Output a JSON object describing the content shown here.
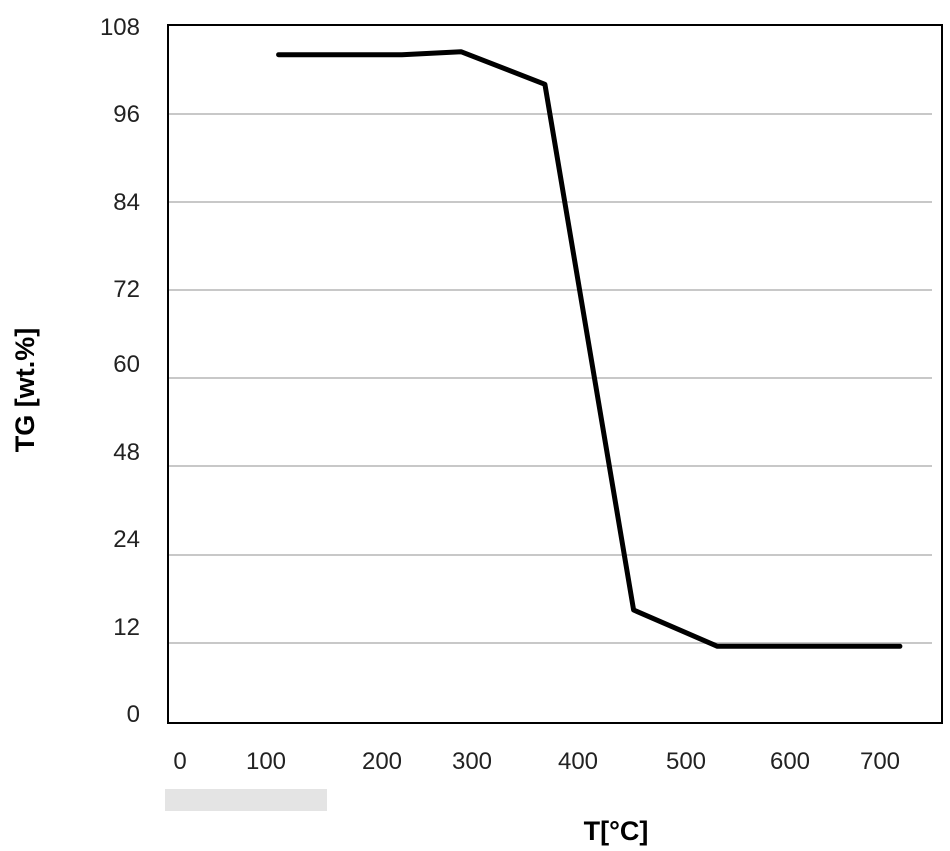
{
  "chart_data": {
    "type": "line",
    "xlabel": "T[°C]",
    "ylabel": "TG [wt.%]",
    "x_tick_labels": [
      "0",
      "100",
      "200",
      "300",
      "400",
      "500",
      "600",
      "700"
    ],
    "y_tick_labels": [
      "0",
      "12",
      "24",
      "48",
      "60",
      "72",
      "84",
      "96",
      "108"
    ],
    "grid": true,
    "legend": "none",
    "series": [
      {
        "color": "#000000",
        "points": [
          {
            "x": 100,
            "y": 104
          },
          {
            "x": 225,
            "y": 104
          },
          {
            "x": 285,
            "y": 104.4
          },
          {
            "x": 370,
            "y": 100
          },
          {
            "x": 460,
            "y": 16.5
          },
          {
            "x": 545,
            "y": 11.5
          },
          {
            "x": 730,
            "y": 11.5
          }
        ]
      }
    ]
  }
}
